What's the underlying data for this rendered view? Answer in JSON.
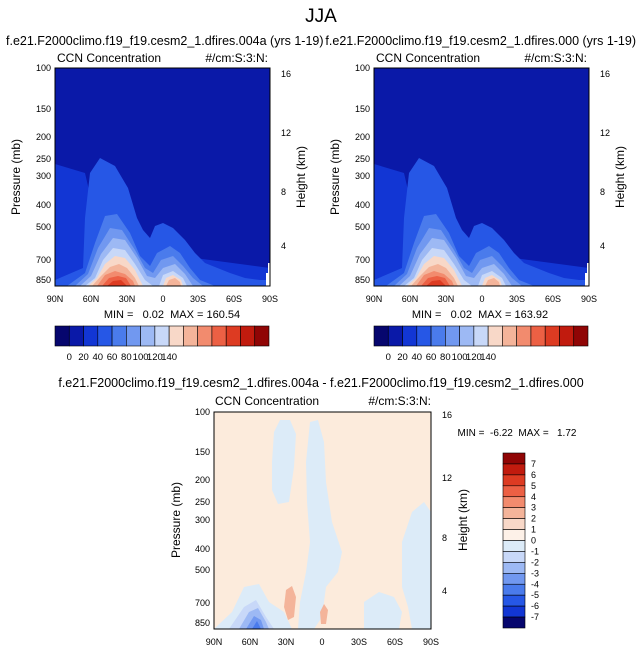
{
  "figure": {
    "title": "JJA"
  },
  "chart_data": [
    {
      "type": "heatmap",
      "id": "p1",
      "case_title": "f.e21.F2000climo.f19_f19.cesm2_1.dfires.004a (yrs 1-19)",
      "left_label": "CCN Concentration",
      "right_label": "#/cm:S:3:N:",
      "ylabel": "Pressure (mb)",
      "y2label": "Height (km)",
      "yticks": [
        "100",
        "150",
        "200",
        "250",
        "300",
        "400",
        "500",
        "700",
        "850"
      ],
      "y2ticks": [
        "16",
        "12",
        "8",
        "4"
      ],
      "xticks": [
        "90N",
        "60N",
        "30N",
        "0",
        "30S",
        "60S",
        "90S"
      ],
      "stats": "MIN =   0.02  MAX = 160.54",
      "ylim": [
        1000,
        100
      ],
      "xlim": [
        "90N",
        "90S"
      ],
      "colorbar_ticks": [
        "0",
        "20",
        "40",
        "60",
        "80",
        "100",
        "120",
        "140"
      ],
      "colorbar_colors": [
        "#06066e",
        "#0a19a8",
        "#1236d4",
        "#2657e6",
        "#4a7bec",
        "#7198f0",
        "#9db9f4",
        "#c8d8f8",
        "#f8d8c8",
        "#f4b49a",
        "#f28b6e",
        "#ec6044",
        "#dd3b22",
        "#c11b0e",
        "#900505"
      ]
    },
    {
      "type": "heatmap",
      "id": "p2",
      "case_title": "f.e21.F2000climo.f19_f19.cesm2_1.dfires.000 (yrs 1-19)",
      "left_label": "CCN Concentration",
      "right_label": "#/cm:S:3:N:",
      "ylabel": "Pressure (mb)",
      "y2label": "Height (km)",
      "yticks": [
        "100",
        "150",
        "200",
        "250",
        "300",
        "400",
        "500",
        "700",
        "850"
      ],
      "y2ticks": [
        "16",
        "12",
        "8",
        "4"
      ],
      "xticks": [
        "90N",
        "60N",
        "30N",
        "0",
        "30S",
        "60S",
        "90S"
      ],
      "stats": "MIN =   0.02  MAX = 163.92",
      "ylim": [
        1000,
        100
      ],
      "xlim": [
        "90N",
        "90S"
      ],
      "colorbar_ticks": [
        "0",
        "20",
        "40",
        "60",
        "80",
        "100",
        "120",
        "140"
      ],
      "colorbar_colors": [
        "#06066e",
        "#0a19a8",
        "#1236d4",
        "#2657e6",
        "#4a7bec",
        "#7198f0",
        "#9db9f4",
        "#c8d8f8",
        "#f8d8c8",
        "#f4b49a",
        "#f28b6e",
        "#ec6044",
        "#dd3b22",
        "#c11b0e",
        "#900505"
      ]
    },
    {
      "type": "heatmap",
      "id": "p3",
      "case_title": "f.e21.F2000climo.f19_f19.cesm2_1.dfires.004a - f.e21.F2000climo.f19_f19.cesm2_1.dfires.000",
      "left_label": "CCN Concentration",
      "right_label": "#/cm:S:3:N:",
      "ylabel": "Pressure (mb)",
      "y2label": "Height (km)",
      "yticks": [
        "100",
        "150",
        "200",
        "250",
        "300",
        "400",
        "500",
        "700",
        "850"
      ],
      "y2ticks": [
        "16",
        "12",
        "8",
        "4"
      ],
      "xticks": [
        "90N",
        "60N",
        "30N",
        "0",
        "30S",
        "60S",
        "90S"
      ],
      "stats": "MIN =  -6.22  MAX =   1.72",
      "ylim": [
        1000,
        100
      ],
      "xlim": [
        "90N",
        "90S"
      ],
      "colorbar_ticks": [
        "7",
        "6",
        "5",
        "4",
        "3",
        "2",
        "1",
        "0",
        "-1",
        "-2",
        "-3",
        "-4",
        "-5",
        "-6",
        "-7"
      ],
      "colorbar_colors": [
        "#900505",
        "#c11b0e",
        "#dd3b22",
        "#ec6044",
        "#f28b6e",
        "#f4b49a",
        "#f8d8c8",
        "#fdf1e8",
        "#dcebf8",
        "#c8d8f8",
        "#9db9f4",
        "#7198f0",
        "#4a7bec",
        "#2657e6",
        "#1236d4",
        "#06066e"
      ]
    }
  ]
}
